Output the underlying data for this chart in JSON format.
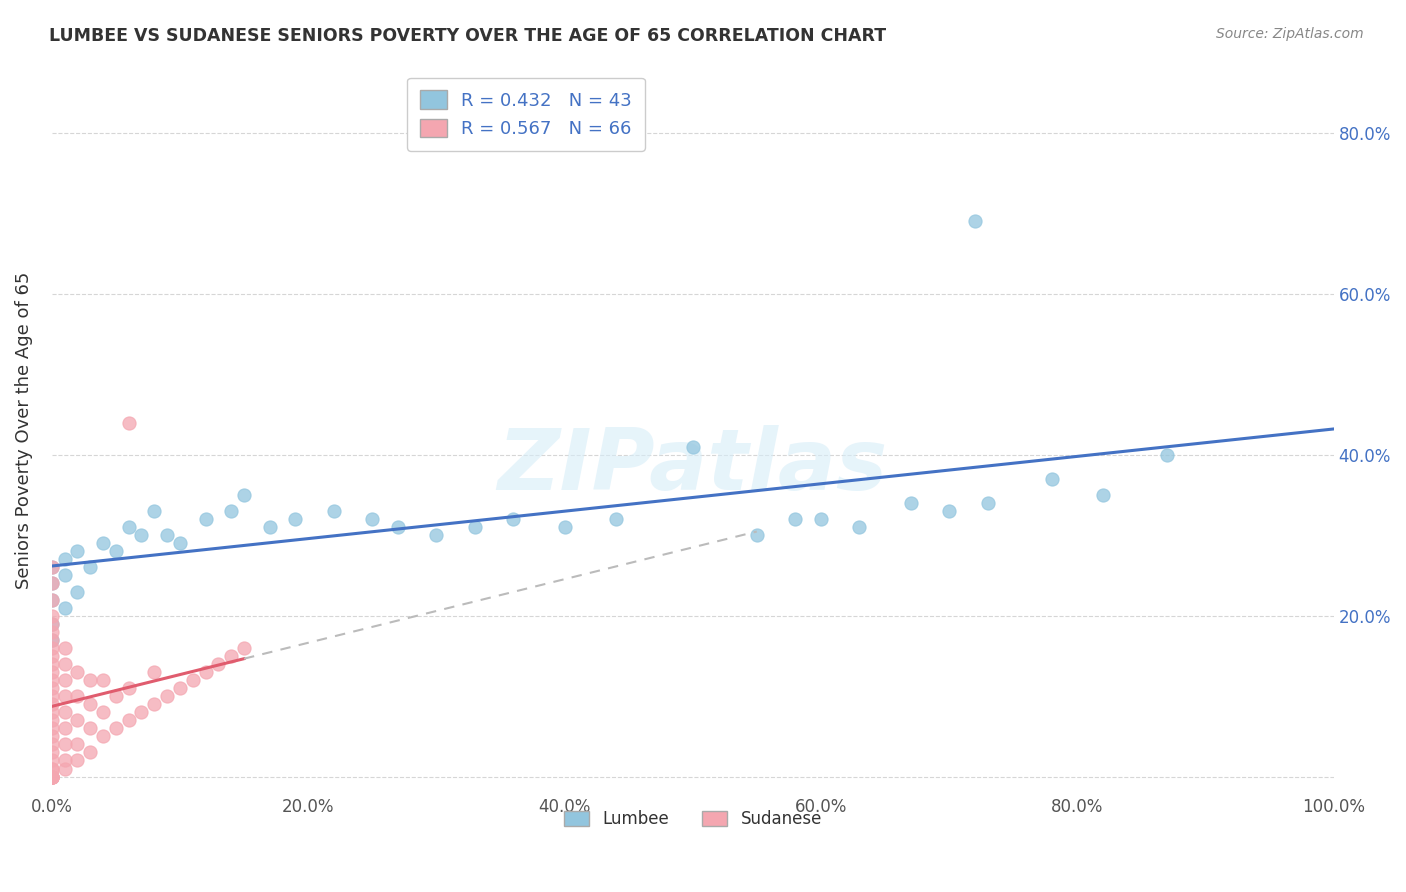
{
  "title": "LUMBEE VS SUDANESE SENIORS POVERTY OVER THE AGE OF 65 CORRELATION CHART",
  "source": "Source: ZipAtlas.com",
  "ylabel": "Seniors Poverty Over the Age of 65",
  "xlabel": "",
  "xlim": [
    0.0,
    1.0
  ],
  "ylim": [
    -0.02,
    0.88
  ],
  "xticks": [
    0.0,
    0.2,
    0.4,
    0.6,
    0.8,
    1.0
  ],
  "xtick_labels": [
    "0.0%",
    "20.0%",
    "40.0%",
    "60.0%",
    "80.0%",
    "100.0%"
  ],
  "yticks": [
    0.0,
    0.2,
    0.4,
    0.6,
    0.8
  ],
  "ytick_labels_right": [
    "",
    "20.0%",
    "40.0%",
    "60.0%",
    "80.0%"
  ],
  "lumbee_R": 0.432,
  "lumbee_N": 43,
  "sudanese_R": 0.567,
  "sudanese_N": 66,
  "lumbee_color": "#92c5de",
  "sudanese_color": "#f4a6b0",
  "lumbee_line_color": "#4472C4",
  "sudanese_line_color": "#e05c6e",
  "background_color": "#ffffff",
  "grid_color": "#cccccc",
  "lumbee_x": [
    0.0,
    0.0,
    0.0,
    0.0,
    0.0,
    0.01,
    0.01,
    0.01,
    0.02,
    0.02,
    0.03,
    0.04,
    0.05,
    0.06,
    0.07,
    0.08,
    0.09,
    0.1,
    0.12,
    0.14,
    0.15,
    0.17,
    0.19,
    0.22,
    0.25,
    0.27,
    0.3,
    0.33,
    0.36,
    0.4,
    0.44,
    0.5,
    0.55,
    0.58,
    0.6,
    0.63,
    0.67,
    0.7,
    0.73,
    0.78,
    0.82,
    0.87,
    0.72
  ],
  "lumbee_y": [
    0.22,
    0.24,
    0.26,
    0.19,
    0.17,
    0.21,
    0.25,
    0.27,
    0.23,
    0.28,
    0.26,
    0.29,
    0.28,
    0.31,
    0.3,
    0.33,
    0.3,
    0.29,
    0.32,
    0.33,
    0.35,
    0.31,
    0.32,
    0.33,
    0.32,
    0.31,
    0.3,
    0.31,
    0.32,
    0.31,
    0.32,
    0.41,
    0.3,
    0.32,
    0.32,
    0.31,
    0.34,
    0.33,
    0.34,
    0.37,
    0.35,
    0.4,
    0.69
  ],
  "sudanese_x": [
    0.0,
    0.0,
    0.0,
    0.0,
    0.0,
    0.0,
    0.0,
    0.0,
    0.0,
    0.0,
    0.0,
    0.0,
    0.0,
    0.0,
    0.0,
    0.0,
    0.0,
    0.0,
    0.0,
    0.0,
    0.0,
    0.0,
    0.0,
    0.0,
    0.0,
    0.0,
    0.0,
    0.0,
    0.0,
    0.0,
    0.01,
    0.01,
    0.01,
    0.01,
    0.01,
    0.01,
    0.01,
    0.01,
    0.01,
    0.02,
    0.02,
    0.02,
    0.02,
    0.02,
    0.03,
    0.03,
    0.03,
    0.03,
    0.04,
    0.04,
    0.04,
    0.05,
    0.05,
    0.06,
    0.06,
    0.07,
    0.08,
    0.08,
    0.09,
    0.1,
    0.11,
    0.12,
    0.13,
    0.14,
    0.15,
    0.06
  ],
  "sudanese_y": [
    0.0,
    0.0,
    0.0,
    0.0,
    0.0,
    0.0,
    0.01,
    0.01,
    0.02,
    0.03,
    0.04,
    0.05,
    0.06,
    0.07,
    0.08,
    0.09,
    0.1,
    0.11,
    0.12,
    0.13,
    0.14,
    0.15,
    0.16,
    0.17,
    0.18,
    0.19,
    0.2,
    0.22,
    0.24,
    0.26,
    0.01,
    0.02,
    0.04,
    0.06,
    0.08,
    0.1,
    0.12,
    0.14,
    0.16,
    0.02,
    0.04,
    0.07,
    0.1,
    0.13,
    0.03,
    0.06,
    0.09,
    0.12,
    0.05,
    0.08,
    0.12,
    0.06,
    0.1,
    0.07,
    0.11,
    0.08,
    0.09,
    0.13,
    0.1,
    0.11,
    0.12,
    0.13,
    0.14,
    0.15,
    0.16,
    0.44
  ]
}
